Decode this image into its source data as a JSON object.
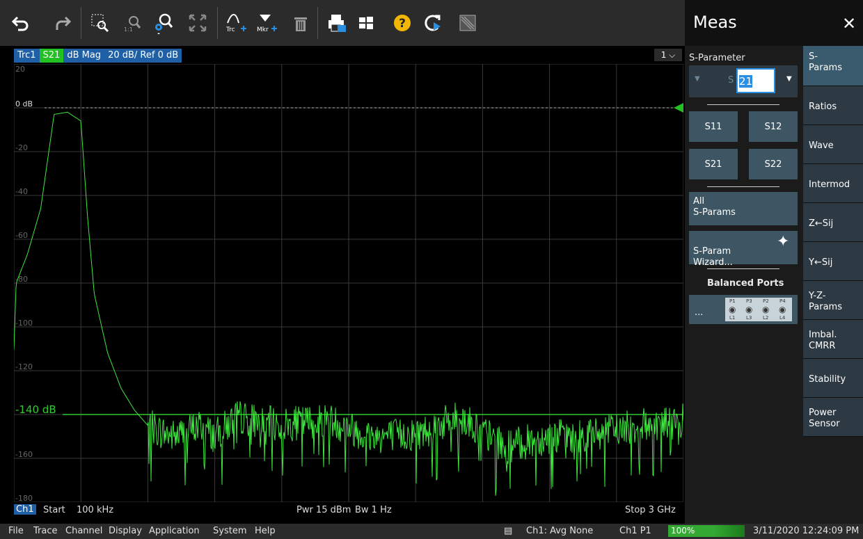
{
  "toolbar": {
    "icons": [
      "undo-icon",
      "redo-icon",
      "zoom-select-icon",
      "zoom-reset-icon",
      "zoom-settings-icon",
      "fullscreen-icon",
      "add-trace-icon",
      "add-marker-icon",
      "delete-icon",
      "print-icon",
      "windows-icon",
      "help-icon",
      "refresh-icon",
      "display-icon"
    ],
    "add_trace_label": "Trc",
    "add_marker_label": "Mkr",
    "zoom_reset_label": "1:1"
  },
  "trace": {
    "name": "Trc1",
    "param": "S21",
    "format": "dB Mag",
    "scale": "20 dB/ Ref 0 dB",
    "window": "1"
  },
  "plot": {
    "y_ticks": [
      "20",
      "0 dB",
      "-20",
      "-40",
      "-60",
      "-80",
      "-100",
      "-120",
      "-140 dB",
      "-160",
      "-180"
    ],
    "ref_line_label": "0 dB",
    "limit_label": "-140 dB"
  },
  "chart_data": {
    "type": "line",
    "title": "",
    "xlabel": "",
    "ylabel": "",
    "x_range_hz": [
      100000,
      3000000000
    ],
    "ylim": [
      -180,
      20
    ],
    "grid": true,
    "series": [
      {
        "name": "Trc1 S21",
        "x_ghz": [
          0.0001,
          0.01,
          0.06,
          0.12,
          0.18,
          0.24,
          0.3,
          0.33,
          0.36,
          0.42,
          0.48,
          0.54,
          0.6,
          0.66,
          0.72,
          0.84,
          0.9,
          1.0,
          1.2,
          1.4,
          1.6,
          1.8,
          2.0,
          2.2,
          2.4,
          2.6,
          2.8,
          3.0
        ],
        "y_db": [
          -110,
          -80,
          -67,
          -46,
          -3,
          -2,
          -6,
          -50,
          -85,
          -112,
          -128,
          -138,
          -145,
          -148,
          -150,
          -145,
          -150,
          -141,
          -145,
          -142,
          -150,
          -149,
          -141,
          -155,
          -150,
          -149,
          -145,
          -143
        ]
      }
    ],
    "horizontal_lines_db": [
      0,
      -140
    ]
  },
  "status": {
    "channel": "Ch1",
    "start_label": "Start",
    "start_value": "100 kHz",
    "power": "Pwr  15 dBm",
    "bandwidth": "Bw  1 Hz",
    "stop": "Stop  3 GHz"
  },
  "menubar": {
    "items": [
      "File",
      "Trace",
      "Channel",
      "Display",
      "Application",
      "System",
      "Help"
    ],
    "avg": "Ch1: Avg None",
    "port": "Ch1 P1",
    "progress": "100%",
    "datetime": "3/11/2020 12:24:09 PM"
  },
  "panel": {
    "title": "Meas",
    "close": "✕",
    "sparam_label": "S-Parameter",
    "sparam_prefix": "S",
    "sparam_value": "21",
    "buttons": [
      "S11",
      "S12",
      "S21",
      "S22"
    ],
    "all_label": "All\nS-Params",
    "wizard_label": "S-Param\nWizard...",
    "balanced_label": "Balanced Ports",
    "ports_button": "...",
    "ports_top": [
      "P1",
      "P3",
      "P2",
      "P4"
    ],
    "ports_bottom": [
      "L1",
      "L3",
      "L2",
      "L4"
    ],
    "tabs": [
      "S-\nParams",
      "Ratios",
      "Wave",
      "Intermod",
      "Z←Sij",
      "Y←Sij",
      "Y-Z-\nParams",
      "Imbal.\nCMRR",
      "Stability",
      "Power\nSensor"
    ]
  },
  "colors": {
    "trace": "#3ee83e",
    "limit_line": "#2ecc2e",
    "grid": "#3a3a3a",
    "panel_button": "#3e5563",
    "active_tab": "#3a5a6e"
  }
}
